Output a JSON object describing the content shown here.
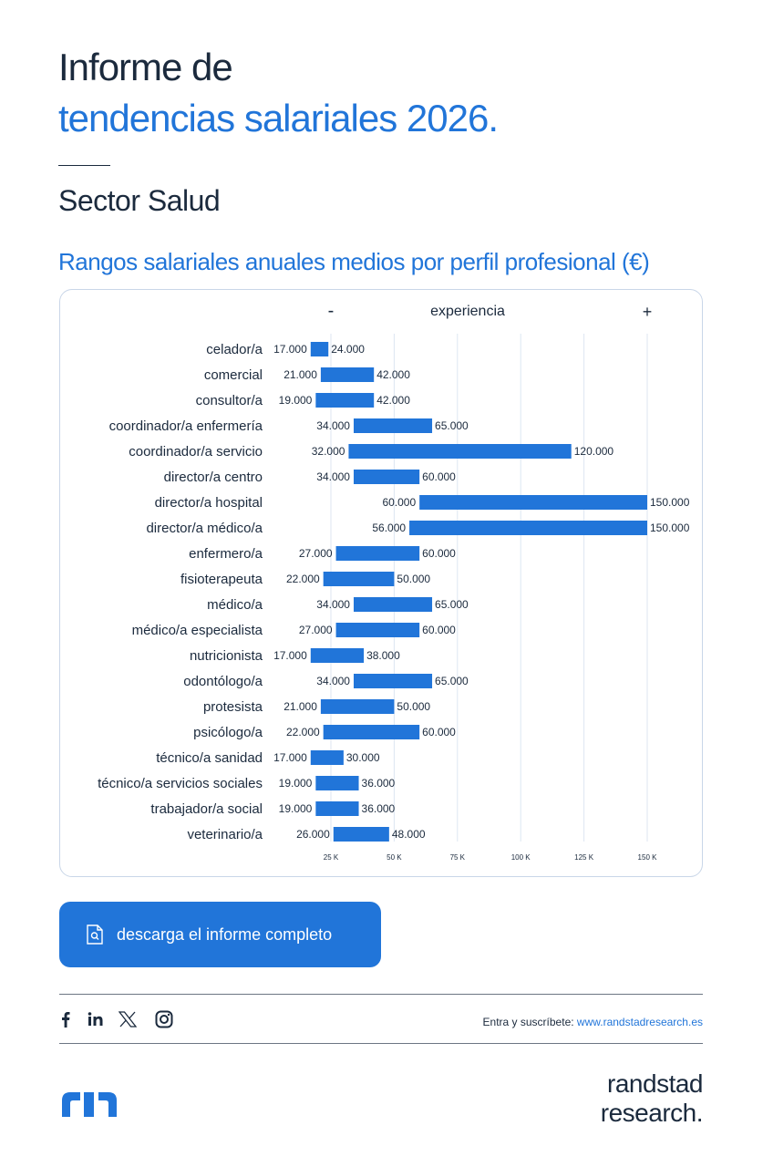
{
  "colors": {
    "accent": "#2175d9",
    "dark": "#1b2a3d",
    "grid": "#dde6f2",
    "bar": "#2175d9"
  },
  "header": {
    "title_line1": "Informe de",
    "title_line2": "tendencias salariales 2026.",
    "sector": "Sector Salud"
  },
  "chart_data": {
    "type": "bar",
    "orientation": "horizontal-range",
    "title": "Rangos salariales anuales medios por perfil profesional (€)",
    "experience_label": "experiencia",
    "experience_min_symbol": "-",
    "experience_max_symbol": "+",
    "x_ticks": [
      {
        "value": 25000,
        "label": "25 K"
      },
      {
        "value": 50000,
        "label": "50 K"
      },
      {
        "value": 75000,
        "label": "75 K"
      },
      {
        "value": 100000,
        "label": "100 K"
      },
      {
        "value": 125000,
        "label": "125 K"
      },
      {
        "value": 150000,
        "label": "150 K"
      }
    ],
    "grid": true,
    "categories": [
      "celador/a",
      "comercial",
      "consultor/a",
      "coordinador/a enfermería",
      "coordinador/a servicio",
      "director/a centro",
      "director/a hospital",
      "director/a médico/a",
      "enfermero/a",
      "fisioterapeuta",
      "médico/a",
      "médico/a especialista",
      "nutricionista",
      "odontólogo/a",
      "protesista",
      "psicólogo/a",
      "técnico/a sanidad",
      "técnico/a servicios sociales",
      "trabajador/a social",
      "veterinario/a"
    ],
    "min": [
      17000,
      21000,
      19000,
      34000,
      32000,
      34000,
      60000,
      56000,
      27000,
      22000,
      34000,
      27000,
      17000,
      34000,
      21000,
      22000,
      17000,
      19000,
      19000,
      26000
    ],
    "max": [
      24000,
      42000,
      42000,
      65000,
      120000,
      60000,
      150000,
      150000,
      60000,
      50000,
      65000,
      60000,
      38000,
      65000,
      50000,
      60000,
      30000,
      36000,
      36000,
      48000
    ],
    "min_labels": [
      "17.000",
      "21.000",
      "19.000",
      "34.000",
      "32.000",
      "34.000",
      "60.000",
      "56.000",
      "27.000",
      "22.000",
      "34.000",
      "27.000",
      "17.000",
      "34.000",
      "21.000",
      "22.000",
      "17.000",
      "19.000",
      "19.000",
      "26.000"
    ],
    "max_labels": [
      "24.000",
      "42.000",
      "42.000",
      "65.000",
      "120.000",
      "60.000",
      "150.000",
      "150.000",
      "60.000",
      "50.000",
      "65.000",
      "60.000",
      "38.000",
      "65.000",
      "50.000",
      "60.000",
      "30.000",
      "36.000",
      "36.000",
      "48.000"
    ]
  },
  "cta": {
    "label": "descarga el informe completo",
    "icon": "document-search-icon"
  },
  "footer": {
    "social": [
      "facebook-icon",
      "linkedin-icon",
      "x-icon",
      "instagram-icon"
    ],
    "subscribe_text": "Entra y suscríbete: ",
    "subscribe_link": "www.randstadresearch.es",
    "brand_line1": "randstad",
    "brand_line2": "research."
  }
}
